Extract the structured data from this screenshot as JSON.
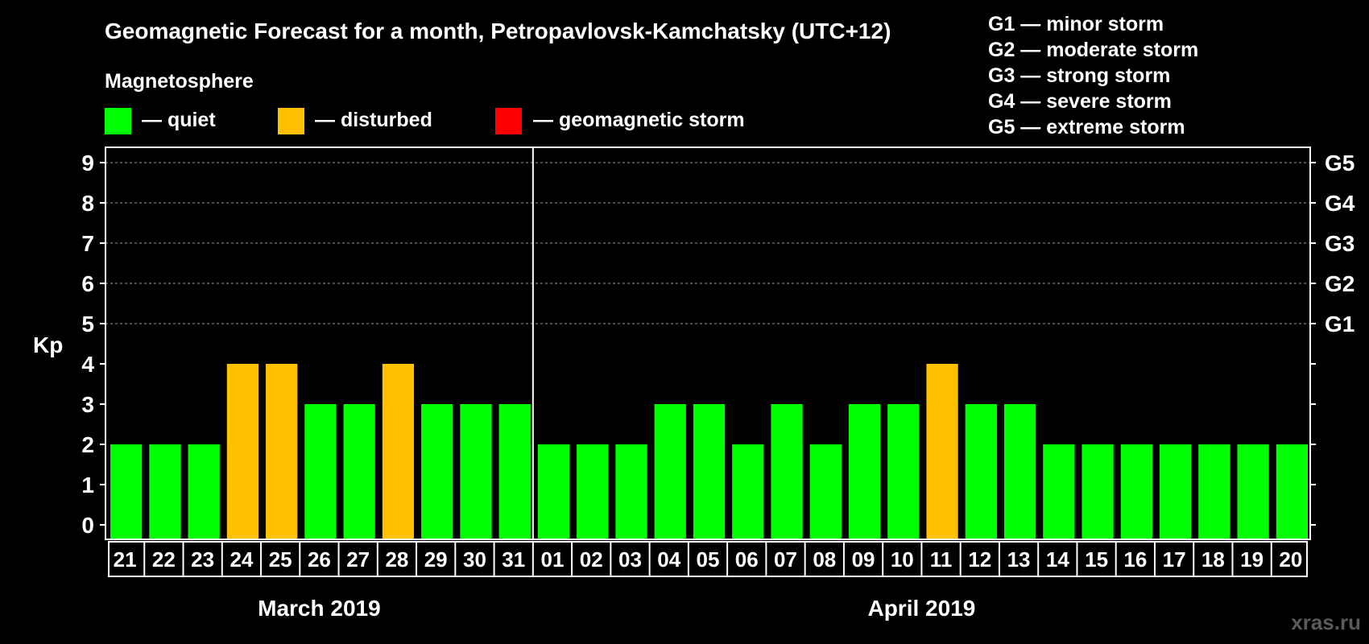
{
  "chart_data": {
    "type": "bar",
    "title": "Geomagnetic Forecast for a month, Petropavlovsk-Kamchatsky (UTC+12)",
    "legend_title": "Magnetosphere",
    "legend": [
      {
        "key": "quiet",
        "label": "— quiet",
        "color": "#00ff00"
      },
      {
        "key": "disturbed",
        "label": "— disturbed",
        "color": "#ffc000"
      },
      {
        "key": "storm",
        "label": "— geomagnetic storm",
        "color": "#ff0000"
      }
    ],
    "storm_scale": [
      "G1 — minor storm",
      "G2 — moderate storm",
      "G3 — strong storm",
      "G4 — severe storm",
      "G5 — extreme storm"
    ],
    "ylabel": "Kp",
    "ylim": [
      0,
      9
    ],
    "y_ticks": [
      "0",
      "1",
      "2",
      "3",
      "4",
      "5",
      "6",
      "7",
      "8",
      "9"
    ],
    "right_ticks": [
      {
        "kp": 5,
        "label": "G1"
      },
      {
        "kp": 6,
        "label": "G2"
      },
      {
        "kp": 7,
        "label": "G3"
      },
      {
        "kp": 8,
        "label": "G4"
      },
      {
        "kp": 9,
        "label": "G5"
      }
    ],
    "categories": [
      "21",
      "22",
      "23",
      "24",
      "25",
      "26",
      "27",
      "28",
      "29",
      "30",
      "31",
      "01",
      "02",
      "03",
      "04",
      "05",
      "06",
      "07",
      "08",
      "09",
      "10",
      "11",
      "12",
      "13",
      "14",
      "15",
      "16",
      "17",
      "18",
      "19",
      "20"
    ],
    "values": [
      2,
      2,
      2,
      4,
      4,
      3,
      3,
      4,
      3,
      3,
      3,
      2,
      2,
      2,
      3,
      3,
      2,
      3,
      2,
      3,
      3,
      4,
      3,
      3,
      2,
      2,
      2,
      2,
      2,
      2,
      2
    ],
    "levels": [
      "quiet",
      "quiet",
      "quiet",
      "disturbed",
      "disturbed",
      "quiet",
      "quiet",
      "disturbed",
      "quiet",
      "quiet",
      "quiet",
      "quiet",
      "quiet",
      "quiet",
      "quiet",
      "quiet",
      "quiet",
      "quiet",
      "quiet",
      "quiet",
      "quiet",
      "disturbed",
      "quiet",
      "quiet",
      "quiet",
      "quiet",
      "quiet",
      "quiet",
      "quiet",
      "quiet",
      "quiet"
    ],
    "months": [
      {
        "label": "March 2019",
        "first_index": 0,
        "count": 11
      },
      {
        "label": "April 2019",
        "first_index": 11,
        "count": 20
      }
    ],
    "grid": true
  },
  "watermark": "xras.ru"
}
